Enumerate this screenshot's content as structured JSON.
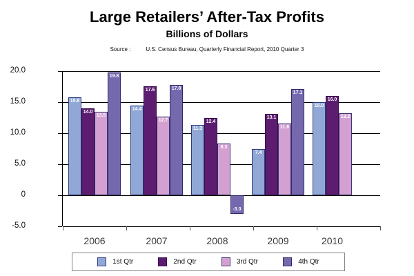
{
  "page": {
    "title": "Large Retailers’ After-Tax Profits",
    "subtitle": "Billions of Dollars",
    "source_label": "Source :",
    "source_text": "U.S. Census Bureau, Quarterly Financial Report, 2010 Quarter 3"
  },
  "chart_data": {
    "type": "bar",
    "title": "Large Retailers’ After-Tax Profits",
    "subtitle": "Billions of Dollars",
    "xlabel": "",
    "ylabel": "Billions of Dollars",
    "categories": [
      "2006",
      "2007",
      "2008",
      "2009",
      "2010"
    ],
    "series": [
      {
        "name": "1st Qtr",
        "color": "#91A8D6",
        "border_color": "#2F3C7E",
        "values": [
          15.8,
          14.4,
          11.3,
          7.4,
          15.0
        ]
      },
      {
        "name": "2nd Qtr",
        "color": "#5C1D70",
        "border_color": "#38104E",
        "values": [
          14.0,
          17.6,
          12.4,
          13.1,
          16.0
        ]
      },
      {
        "name": "3rd Qtr",
        "color": "#D4A0D2",
        "border_color": "#39396F",
        "values": [
          13.5,
          12.7,
          8.3,
          11.6,
          13.2
        ]
      },
      {
        "name": "4th Qtr",
        "color": "#7568AD",
        "border_color": "#2F2C6B",
        "values": [
          19.8,
          17.8,
          -3.0,
          17.1,
          null
        ]
      }
    ],
    "ylim": [
      -5,
      20
    ],
    "yticks": [
      20,
      15,
      10,
      5,
      0,
      -5
    ],
    "ytick_labels": [
      "20.0",
      "15.0",
      "10.0",
      "5.0",
      "0",
      "-5.0"
    ],
    "grid": true,
    "legend_position": "bottom",
    "bar_value_labels": true
  }
}
